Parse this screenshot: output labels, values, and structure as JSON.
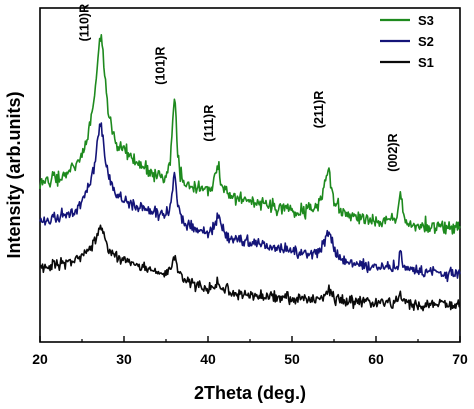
{
  "chart_data": {
    "type": "line",
    "xlabel": "2Theta (deg.)",
    "ylabel": "Intensity (arb.units)",
    "xlim": [
      20,
      70
    ],
    "ylim": [
      0,
      100
    ],
    "x_ticks": [
      20,
      30,
      40,
      50,
      60,
      70
    ],
    "y_tick_labels_shown": false,
    "grid": false,
    "legend_position": "top-right",
    "series": [
      {
        "name": "S3",
        "color": "#1e8a1e",
        "baseline": [
          [
            20,
            47
          ],
          [
            24,
            50
          ],
          [
            26,
            55
          ],
          [
            30,
            55
          ],
          [
            35,
            47
          ],
          [
            40,
            44
          ],
          [
            45,
            42
          ],
          [
            50,
            39
          ],
          [
            55,
            38
          ],
          [
            60,
            36
          ],
          [
            65,
            35
          ],
          [
            70,
            34
          ]
        ],
        "peaks": [
          {
            "x": 27.2,
            "height": 36,
            "width": 0.75
          },
          {
            "x": 36.0,
            "height": 26,
            "width": 0.32
          },
          {
            "x": 41.2,
            "height": 9,
            "width": 0.4
          },
          {
            "x": 54.3,
            "height": 13,
            "width": 0.6
          },
          {
            "x": 62.9,
            "height": 9,
            "width": 0.25
          }
        ],
        "noise": 1.6
      },
      {
        "name": "S2",
        "color": "#141478",
        "baseline": [
          [
            20,
            36
          ],
          [
            24,
            38
          ],
          [
            26,
            42
          ],
          [
            30,
            41
          ],
          [
            35,
            37
          ],
          [
            40,
            32
          ],
          [
            45,
            30
          ],
          [
            50,
            27
          ],
          [
            55,
            24
          ],
          [
            60,
            22
          ],
          [
            65,
            21
          ],
          [
            70,
            20
          ]
        ],
        "peaks": [
          {
            "x": 27.2,
            "height": 23,
            "width": 0.75
          },
          {
            "x": 36.0,
            "height": 14,
            "width": 0.32
          },
          {
            "x": 41.2,
            "height": 6,
            "width": 0.4
          },
          {
            "x": 54.3,
            "height": 8,
            "width": 0.6
          },
          {
            "x": 62.9,
            "height": 5,
            "width": 0.25
          }
        ],
        "noise": 1.4
      },
      {
        "name": "S1",
        "color": "#0a0a0a",
        "baseline": [
          [
            20,
            22
          ],
          [
            24,
            24
          ],
          [
            26,
            26
          ],
          [
            30,
            24
          ],
          [
            35,
            20
          ],
          [
            40,
            16
          ],
          [
            45,
            14
          ],
          [
            50,
            13
          ],
          [
            55,
            12
          ],
          [
            60,
            12
          ],
          [
            65,
            11
          ],
          [
            70,
            11
          ]
        ],
        "peaks": [
          {
            "x": 27.2,
            "height": 9,
            "width": 0.7
          },
          {
            "x": 36.0,
            "height": 6,
            "width": 0.3
          },
          {
            "x": 41.2,
            "height": 2,
            "width": 0.4
          },
          {
            "x": 54.3,
            "height": 3,
            "width": 0.6
          },
          {
            "x": 62.9,
            "height": 2.5,
            "width": 0.25
          }
        ],
        "noise": 1.3
      }
    ],
    "annotations": [
      {
        "text": "(110)R",
        "x": 25.8,
        "y": 90
      },
      {
        "text": "(101)R",
        "x": 34.8,
        "y": 77
      },
      {
        "text": "(111)R",
        "x": 40.6,
        "y": 60
      },
      {
        "text": "(211)R",
        "x": 53.7,
        "y": 64
      },
      {
        "text": "(002)R",
        "x": 62.5,
        "y": 51
      }
    ]
  }
}
